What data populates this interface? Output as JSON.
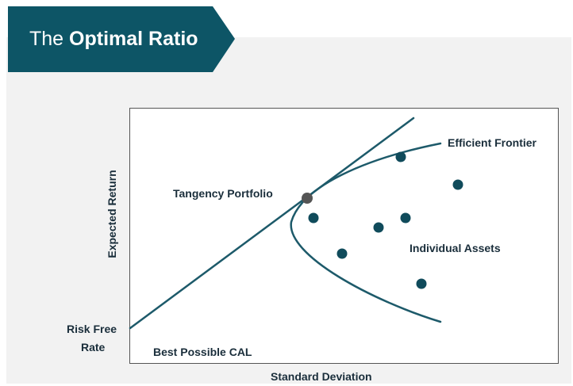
{
  "header": {
    "title_prefix": "The ",
    "title_bold": "Optimal Ratio"
  },
  "diagram": {
    "x_axis_label": "Standard Deviation",
    "y_axis_label": "Expected Return",
    "labels": {
      "efficient_frontier": "Efficient Frontier",
      "tangency_portfolio": "Tangency Portfolio",
      "individual_assets": "Individual Assets",
      "risk_free_line1": "Risk Free",
      "risk_free_line2": "Rate",
      "best_cal": "Best Possible CAL"
    }
  },
  "colors": {
    "banner": "#0d5566",
    "curve": "#1d5a6a",
    "asset_point": "#104b5b",
    "tangency_point": "#555555",
    "text": "#1a2e3b"
  }
}
